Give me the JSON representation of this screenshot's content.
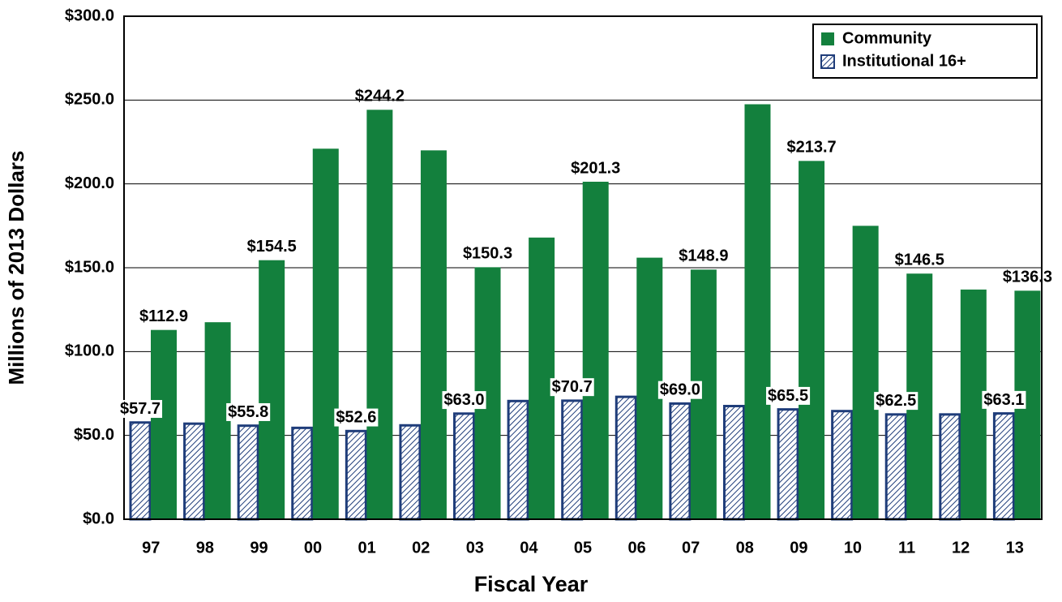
{
  "chart_data": {
    "type": "bar",
    "xlabel": "Fiscal Year",
    "ylabel": "Millions of 2013 Dollars",
    "categories": [
      "97",
      "98",
      "99",
      "00",
      "01",
      "02",
      "03",
      "04",
      "05",
      "06",
      "07",
      "08",
      "09",
      "10",
      "11",
      "12",
      "13"
    ],
    "series": [
      {
        "name": "Institutional 16+",
        "color": "#1f3d7a",
        "hatch": true,
        "values": [
          57.7,
          57,
          55.8,
          54.5,
          52.6,
          56,
          63.0,
          70.5,
          70.7,
          73,
          69.0,
          67.5,
          65.5,
          64.5,
          62.5,
          62.5,
          63.1
        ],
        "value_labels": [
          "$57.7",
          null,
          "$55.8",
          null,
          "$52.6",
          null,
          "$63.0",
          null,
          "$70.7",
          null,
          "$69.0",
          null,
          "$65.5",
          null,
          "$62.5",
          null,
          "$63.1"
        ]
      },
      {
        "name": "Community",
        "color": "#13803d",
        "values": [
          112.9,
          117.5,
          154.5,
          221,
          244.2,
          220,
          150.3,
          168,
          201.3,
          156,
          148.9,
          247.5,
          213.7,
          175,
          146.5,
          137,
          136.3
        ],
        "value_labels": [
          "$112.9",
          null,
          "$154.5",
          null,
          "$244.2",
          null,
          "$150.3",
          null,
          "$201.3",
          null,
          "$148.9",
          null,
          "$213.7",
          null,
          "$146.5",
          null,
          "$136.3"
        ]
      }
    ],
    "ylim": [
      0,
      300
    ],
    "yticks": [
      {
        "value": 0,
        "label": "$0.0"
      },
      {
        "value": 50,
        "label": "$50.0"
      },
      {
        "value": 100,
        "label": "$100.0"
      },
      {
        "value": 150,
        "label": "$150.0"
      },
      {
        "value": 200,
        "label": "$200.0"
      },
      {
        "value": 250,
        "label": "$250.0"
      },
      {
        "value": 300,
        "label": "$300.0"
      }
    ],
    "grid": true,
    "legend": "upper right"
  }
}
